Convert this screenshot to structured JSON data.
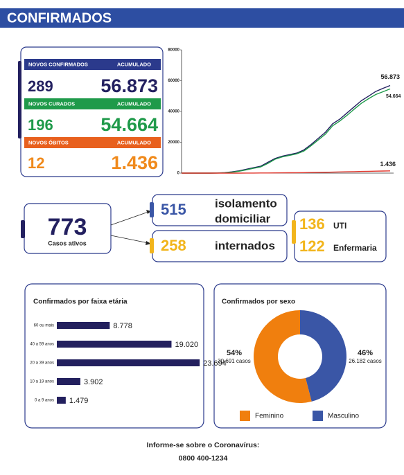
{
  "header": {
    "title": "CONFIRMADOS"
  },
  "summary": [
    {
      "label": "NOVOS CONFIRMADOS",
      "acc_label": "ACUMULADO",
      "new": "289",
      "total": "56.873",
      "band_color": "#2b3a8c",
      "number_color": "#232060"
    },
    {
      "label": "NOVOS CURADOS",
      "acc_label": "ACUMULADO",
      "new": "196",
      "total": "54.664",
      "band_color": "#1f9a4a",
      "number_color": "#1f9a4a"
    },
    {
      "label": "NOVOS ÓBITOS",
      "acc_label": "ACUMULADO",
      "new": "12",
      "total": "1.436",
      "band_color": "#e8601e",
      "number_color": "#f08a1c"
    }
  ],
  "active": {
    "value": "773",
    "label": "Casos ativos",
    "isolation": {
      "value": "515",
      "label_lines": [
        "isolamento",
        "domiciliar"
      ]
    },
    "hospital": {
      "value": "258",
      "label": "internados"
    },
    "beds": [
      {
        "value": "136",
        "label": "UTI"
      },
      {
        "value": "122",
        "label": "Enfermaria"
      }
    ]
  },
  "chart_data": [
    {
      "type": "line",
      "ylim": [
        0,
        80000
      ],
      "yticks": [
        0,
        20000,
        40000,
        60000,
        80000
      ],
      "series": [
        {
          "color": "#232060",
          "end_label": "56.873",
          "values": [
            0,
            0,
            0,
            0,
            0,
            100,
            300,
            800,
            1500,
            2500,
            3500,
            4500,
            7000,
            9500,
            11000,
            12000,
            13000,
            15000,
            18500,
            22500,
            26500,
            32000,
            35000,
            39000,
            43000,
            47000,
            50000,
            53000,
            55000,
            56873
          ]
        },
        {
          "color": "#1f9a4a",
          "end_label": "54.664",
          "values": [
            0,
            0,
            0,
            0,
            0,
            50,
            200,
            600,
            1200,
            2100,
            3100,
            4000,
            6300,
            9000,
            10500,
            11500,
            12500,
            14300,
            17700,
            21500,
            25300,
            30700,
            33800,
            37500,
            41500,
            45300,
            48300,
            51000,
            52800,
            54664
          ]
        },
        {
          "color": "#e0352b",
          "end_label": "1.436",
          "values": [
            0,
            0,
            0,
            0,
            0,
            2,
            5,
            10,
            20,
            35,
            50,
            70,
            100,
            140,
            180,
            220,
            270,
            330,
            400,
            480,
            560,
            650,
            750,
            850,
            960,
            1070,
            1180,
            1280,
            1360,
            1436
          ]
        }
      ]
    },
    {
      "type": "bar",
      "title": "Confirmados por faixa etária",
      "color": "#23205e",
      "categories": [
        "60 ou mais",
        "40 a 59 anos",
        "20 a 39 anos",
        "10 a 19 anos",
        "0 a 9 anos"
      ],
      "values": [
        8778,
        19020,
        23694,
        3902,
        1479
      ],
      "value_labels": [
        "8.778",
        "19.020",
        "23.694",
        "3.902",
        "1.479"
      ]
    },
    {
      "type": "pie",
      "title": "Confirmados por sexo",
      "donut": true,
      "categories": [
        "Feminino",
        "Masculino"
      ],
      "values": [
        54,
        46
      ],
      "value_labels": [
        "54%",
        "46%"
      ],
      "sub_labels": [
        "30.691 casos",
        "26.182 casos"
      ],
      "colors": [
        "#f07f0e",
        "#3a56a6"
      ]
    }
  ],
  "footer": {
    "lines": [
      "Informe-se sobre o Coronavírus:",
      "0800 400-1234"
    ]
  }
}
